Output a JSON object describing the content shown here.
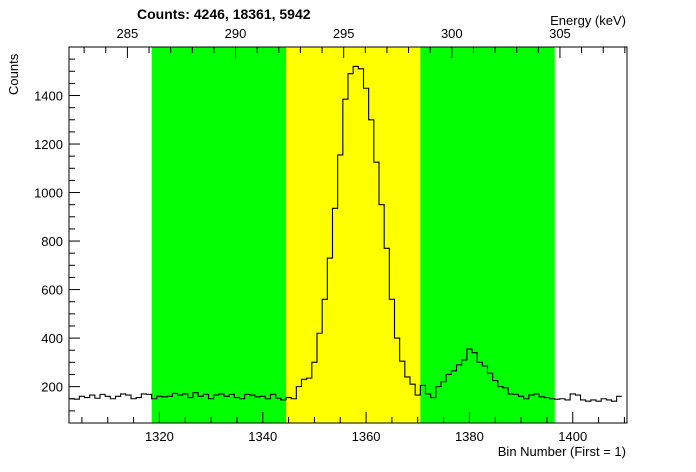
{
  "chart_data": {
    "type": "histogram",
    "title": "Counts:   4246,   18361,   5942",
    "xlabel": "Bin Number (First = 1)",
    "ylabel": "Counts",
    "x2label": "Energy (keV)",
    "xlim": [
      1302.5,
      1410.5
    ],
    "ylim": [
      50,
      1600
    ],
    "x2lim": [
      282.3,
      308.1
    ],
    "xticks": [
      1320,
      1340,
      1360,
      1380,
      1400
    ],
    "yticks": [
      200,
      400,
      600,
      800,
      1000,
      1200,
      1400
    ],
    "x2ticks": [
      285,
      290,
      295,
      300,
      305
    ],
    "regions": [
      {
        "role": "background-left",
        "from": 1318.5,
        "to": 1344.5,
        "color": "#00ff00"
      },
      {
        "role": "peak",
        "from": 1344.5,
        "to": 1370.5,
        "color": "#ffff00"
      },
      {
        "role": "background-right",
        "from": 1370.5,
        "to": 1396.5,
        "color": "#00ff00"
      }
    ],
    "bins": {
      "start": 1302.5,
      "width": 1,
      "values": [
        150,
        148,
        160,
        155,
        165,
        152,
        168,
        160,
        150,
        160,
        170,
        165,
        150,
        155,
        170,
        168,
        150,
        160,
        158,
        160,
        172,
        165,
        170,
        155,
        175,
        160,
        168,
        150,
        165,
        170,
        160,
        168,
        155,
        150,
        168,
        165,
        158,
        160,
        150,
        168,
        152,
        145,
        155,
        150,
        200,
        230,
        235,
        300,
        420,
        560,
        730,
        935,
        1155,
        1385,
        1490,
        1520,
        1510,
        1430,
        1300,
        1125,
        950,
        770,
        560,
        400,
        305,
        240,
        210,
        165,
        205,
        170,
        155,
        200,
        220,
        250,
        265,
        290,
        310,
        355,
        340,
        300,
        285,
        255,
        225,
        200,
        195,
        170,
        168,
        160,
        150,
        165,
        170,
        158,
        155,
        150,
        148,
        150,
        145,
        170,
        165,
        145,
        140,
        145,
        140,
        150,
        145,
        140,
        160
      ]
    }
  }
}
